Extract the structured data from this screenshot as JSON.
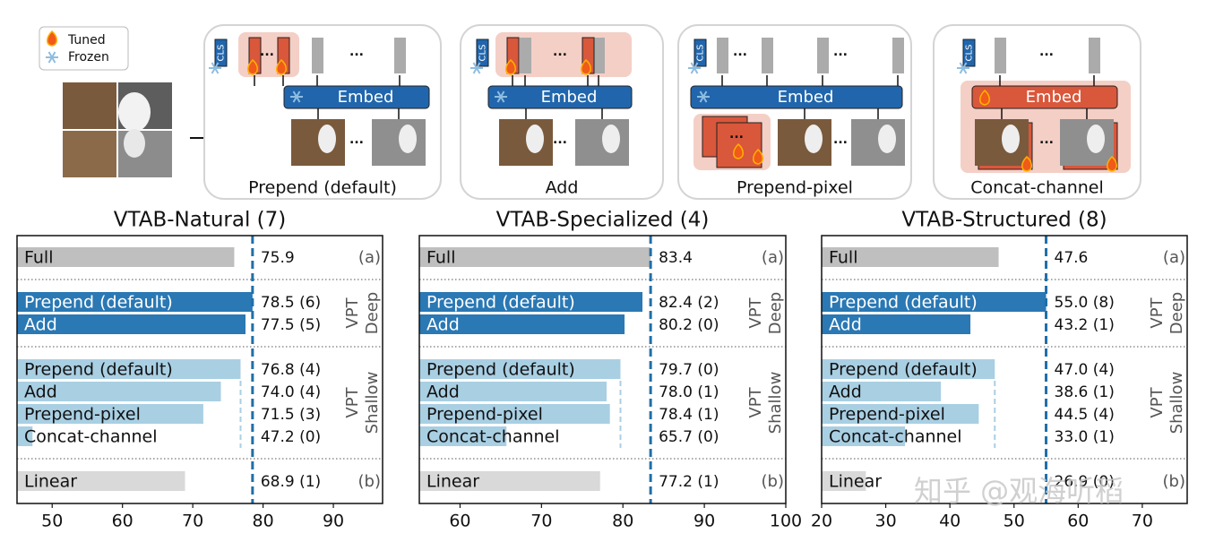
{
  "diagram": {
    "legend": [
      "Tuned",
      "Frozen"
    ],
    "cls": "CLS",
    "embed": "Embed",
    "ellipsis": "...",
    "captions": [
      "Prepend (default)",
      "Add",
      "Prepend-pixel",
      "Concat-channel"
    ]
  },
  "chart_data": [
    {
      "type": "bar",
      "title": "VTAB-Natural (7)",
      "categories": [
        "Full",
        "Prepend (default)",
        "Add",
        "Prepend (default)",
        "Add",
        "Prepend-pixel",
        "Concat-channel",
        "Linear"
      ],
      "values": [
        75.9,
        78.5,
        77.5,
        76.8,
        74.0,
        71.5,
        47.2,
        68.9
      ],
      "value_labels": [
        "75.9",
        "78.5 (6)",
        "77.5 (5)",
        "76.8 (4)",
        "74.0 (4)",
        "71.5 (3)",
        "47.2 (0)",
        "68.9 (1)"
      ],
      "colors": [
        "#bfbfbf",
        "#2a78b4",
        "#2a78b4",
        "#a9cfe3",
        "#a9cfe3",
        "#a9cfe3",
        "#a9cfe3",
        "#d9d9d9"
      ],
      "group_labels": [
        [
          "(a)"
        ],
        [
          "VPT",
          "Deep"
        ],
        [
          "VPT",
          "Shallow"
        ],
        [
          "(b)"
        ]
      ],
      "xlim": [
        45,
        97
      ],
      "xticks": [
        50,
        60,
        70,
        80,
        90
      ]
    },
    {
      "type": "bar",
      "title": "VTAB-Specialized (4)",
      "categories": [
        "Full",
        "Prepend (default)",
        "Add",
        "Prepend (default)",
        "Add",
        "Prepend-pixel",
        "Concat-channel",
        "Linear"
      ],
      "values": [
        83.4,
        82.4,
        80.2,
        79.7,
        78.0,
        78.4,
        65.7,
        77.2
      ],
      "value_labels": [
        "83.4",
        "82.4 (2)",
        "80.2 (0)",
        "79.7 (0)",
        "78.0 (1)",
        "78.4 (1)",
        "65.7 (0)",
        "77.2 (1)"
      ],
      "colors": [
        "#bfbfbf",
        "#2a78b4",
        "#2a78b4",
        "#a9cfe3",
        "#a9cfe3",
        "#a9cfe3",
        "#a9cfe3",
        "#d9d9d9"
      ],
      "group_labels": [
        [
          "(a)"
        ],
        [
          "VPT",
          "Deep"
        ],
        [
          "VPT",
          "Shallow"
        ],
        [
          "(b)"
        ]
      ],
      "xlim": [
        55,
        100
      ],
      "xticks": [
        60,
        70,
        80,
        90,
        100
      ]
    },
    {
      "type": "bar",
      "title": "VTAB-Structured (8)",
      "categories": [
        "Full",
        "Prepend (default)",
        "Add",
        "Prepend (default)",
        "Add",
        "Prepend-pixel",
        "Concat-channel",
        "Linear"
      ],
      "values": [
        47.6,
        55.0,
        43.2,
        47.0,
        38.6,
        44.5,
        33.0,
        26.9
      ],
      "value_labels": [
        "47.6",
        "55.0 (8)",
        "43.2 (1)",
        "47.0 (4)",
        "38.6 (1)",
        "44.5 (4)",
        "33.0 (1)",
        "26.9 (0)"
      ],
      "colors": [
        "#bfbfbf",
        "#2a78b4",
        "#2a78b4",
        "#a9cfe3",
        "#a9cfe3",
        "#a9cfe3",
        "#a9cfe3",
        "#d9d9d9"
      ],
      "group_labels": [
        [
          "(a)"
        ],
        [
          "VPT",
          "Deep"
        ],
        [
          "VPT",
          "Shallow"
        ],
        [
          "(b)"
        ]
      ],
      "xlim": [
        20,
        77
      ],
      "xticks": [
        20,
        30,
        40,
        50,
        60,
        70
      ]
    }
  ],
  "watermark": "知乎 @观海听稻"
}
